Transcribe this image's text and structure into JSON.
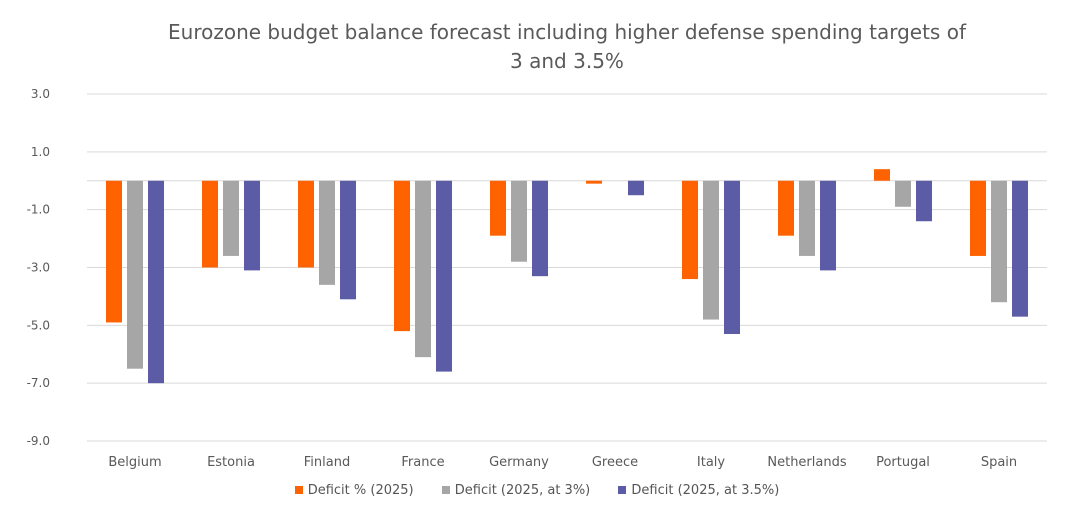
{
  "chart_data": {
    "type": "bar",
    "title": "Eurozone budget balance forecast including higher defense spending targets of 3 and 3.5%",
    "title_lines": [
      "Eurozone budget balance forecast including higher defense spending targets of",
      "3 and 3.5%"
    ],
    "categories": [
      "Belgium",
      "Estonia",
      "Finland",
      "France",
      "Germany",
      "Greece",
      "Italy",
      "Netherlands",
      "Portugal",
      "Spain"
    ],
    "series": [
      {
        "name": "Deficit % (2025)",
        "color": "#ff6200",
        "values": [
          -4.9,
          -3.0,
          -3.0,
          -5.2,
          -1.9,
          -0.1,
          -3.4,
          -1.9,
          0.4,
          -2.6
        ]
      },
      {
        "name": "Deficit (2025, at 3%)",
        "color": "#a6a6a6",
        "values": [
          -6.5,
          -2.6,
          -3.6,
          -6.1,
          -2.8,
          0.0,
          -4.8,
          -2.6,
          -0.9,
          -4.2
        ]
      },
      {
        "name": "Deficit (2025, at 3.5%)",
        "color": "#5c5ba6",
        "values": [
          -7.0,
          -3.1,
          -4.1,
          -6.6,
          -3.3,
          -0.5,
          -5.3,
          -3.1,
          -1.4,
          -4.7
        ]
      }
    ],
    "yticks": [
      "3.0",
      "1.0",
      "-1.0",
      "-3.0",
      "-5.0",
      "-7.0",
      "-9.0"
    ],
    "ylim": [
      -9,
      3
    ],
    "xlabel": "",
    "ylabel": "",
    "grid": true,
    "legend_position": "bottom"
  }
}
